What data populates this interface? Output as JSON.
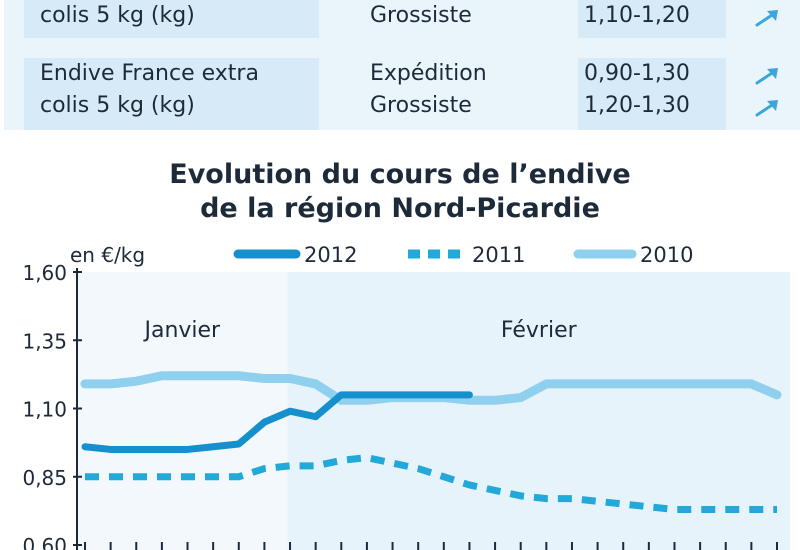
{
  "table": {
    "rows": [
      {
        "product": [
          "colis 5 kg (kg)"
        ],
        "types": [
          "Grossiste"
        ],
        "prices": [
          "1,10-1,20"
        ],
        "trends": [
          "up"
        ]
      },
      {
        "product": [
          "Endive France extra",
          "colis 5 kg (kg)"
        ],
        "types": [
          "Expédition",
          "Grossiste"
        ],
        "prices": [
          "0,90-1,30",
          "1,20-1,30"
        ],
        "trends": [
          "up",
          "up"
        ]
      }
    ]
  },
  "colors": {
    "s2012": "#1590cc",
    "s2011": "#22a9da",
    "s2010": "#8fd0ef",
    "panel": "#eaf4fb",
    "cell": "#d6ebf7",
    "janvier_bg": "#f2f8fc",
    "fevrier_bg": "#e7f3fa"
  },
  "chart_data": {
    "type": "line",
    "title": "Evolution du cours de l’endive\nde la région Nord-Picardie",
    "title_lines": [
      "Evolution du cours de l’endive",
      "de la région Nord-Picardie"
    ],
    "ylabel": "en €/kg",
    "ylim": [
      0.6,
      1.6
    ],
    "yticks": [
      0.6,
      0.85,
      1.1,
      1.35,
      1.6
    ],
    "ytick_labels": [
      "0,60",
      "0,85",
      "1,10",
      "1,35",
      "1,60"
    ],
    "periods": [
      {
        "label": "Janvier",
        "x_range": [
          0,
          7
        ]
      },
      {
        "label": "Février",
        "x_range": [
          7,
          27
        ]
      }
    ],
    "x_range": [
      0,
      27
    ],
    "series": [
      {
        "name": "2012",
        "style": "solid",
        "x": [
          0,
          1,
          2,
          3,
          4,
          5,
          6,
          7,
          8,
          9,
          10,
          11,
          12,
          13,
          14,
          15
        ],
        "y": [
          0.96,
          0.95,
          0.95,
          0.95,
          0.95,
          0.96,
          0.97,
          1.05,
          1.09,
          1.07,
          1.15,
          1.15,
          1.15,
          1.15,
          1.15,
          1.15
        ]
      },
      {
        "name": "2011",
        "style": "dashed",
        "x": [
          0,
          1,
          2,
          3,
          4,
          5,
          6,
          7,
          8,
          9,
          10,
          11,
          12,
          13,
          14,
          15,
          16,
          17,
          18,
          19,
          20,
          21,
          22,
          23,
          24,
          25,
          26,
          27
        ],
        "y": [
          0.85,
          0.85,
          0.85,
          0.85,
          0.85,
          0.85,
          0.85,
          0.88,
          0.89,
          0.89,
          0.91,
          0.92,
          0.9,
          0.88,
          0.85,
          0.82,
          0.8,
          0.78,
          0.77,
          0.77,
          0.76,
          0.75,
          0.74,
          0.73,
          0.73,
          0.73,
          0.73,
          0.73
        ]
      },
      {
        "name": "2010",
        "style": "solid",
        "x": [
          0,
          1,
          2,
          3,
          4,
          5,
          6,
          7,
          8,
          9,
          10,
          11,
          12,
          13,
          14,
          15,
          16,
          17,
          18,
          19,
          20,
          21,
          22,
          23,
          24,
          25,
          26,
          27
        ],
        "y": [
          1.19,
          1.19,
          1.2,
          1.22,
          1.22,
          1.22,
          1.22,
          1.21,
          1.21,
          1.19,
          1.13,
          1.13,
          1.14,
          1.14,
          1.14,
          1.13,
          1.13,
          1.14,
          1.19,
          1.19,
          1.19,
          1.19,
          1.19,
          1.19,
          1.19,
          1.19,
          1.19,
          1.15
        ]
      }
    ],
    "legend_position": "top"
  }
}
